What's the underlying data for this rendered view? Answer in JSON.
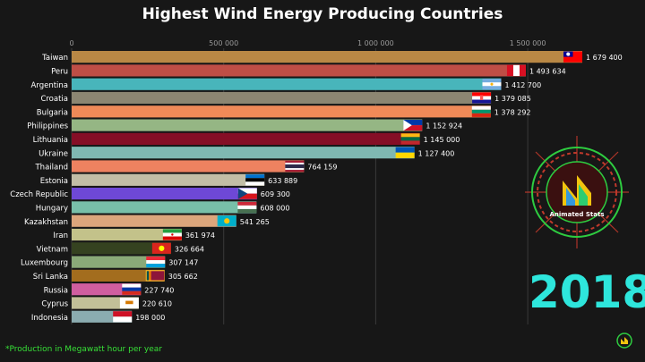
{
  "title": "Highest Wind Energy Producing Countries",
  "year": "2018",
  "footnote": "*Production in Megawatt hour per year",
  "logo_text": "Animated Stats",
  "chart_data": {
    "type": "bar",
    "orientation": "horizontal",
    "title": "Highest Wind Energy Producing Countries",
    "xlim": [
      0,
      1700000
    ],
    "ticks": [
      0,
      500000,
      1000000,
      1500000
    ],
    "tick_labels": [
      "0",
      "500 000",
      "1 000 000",
      "1 500 000"
    ],
    "grid": true,
    "categories": [
      "Taiwan",
      "Peru",
      "Argentina",
      "Croatia",
      "Bulgaria",
      "Philippines",
      "Lithuania",
      "Ukraine",
      "Thailand",
      "Estonia",
      "Czech Republic",
      "Hungary",
      "Kazakhstan",
      "Iran",
      "Vietnam",
      "Luxembourg",
      "Sri Lanka",
      "Russia",
      "Cyprus",
      "Indonesia"
    ],
    "values": [
      1679400,
      1493634,
      1412700,
      1379085,
      1378292,
      1152924,
      1145000,
      1127400,
      764159,
      633889,
      609300,
      608000,
      541265,
      361974,
      326664,
      307147,
      305662,
      227740,
      220610,
      198000
    ],
    "value_labels": [
      "1 679 400",
      "1 493 634",
      "1 412 700",
      "1 379 085",
      "1 378 292",
      "1 152 924",
      "1 145 000",
      "1 127 400",
      "764 159",
      "633 889",
      "609 300",
      "608 000",
      "541 265",
      "361 974",
      "326 664",
      "307 147",
      "305 662",
      "227 740",
      "220 610",
      "198 000"
    ],
    "colors": [
      "#b98845",
      "#bf4e46",
      "#48b5bb",
      "#8c8672",
      "#f08a58",
      "#95b684",
      "#850e26",
      "#7fb8b2",
      "#ee8260",
      "#c2bea6",
      "#6e48d6",
      "#78bfa9",
      "#dca67c",
      "#c3c28a",
      "#354220",
      "#8aaa78",
      "#a36d1e",
      "#d05ea0",
      "#c2c098",
      "#8bacb0"
    ],
    "flags": [
      "taiwan-flag",
      "peru-flag",
      "argentina-flag",
      "croatia-flag",
      "bulgaria-flag",
      "philippines-flag",
      "lithuania-flag",
      "ukraine-flag",
      "thailand-flag",
      "estonia-flag",
      "czech-republic-flag",
      "hungary-flag",
      "kazakhstan-flag",
      "iran-flag",
      "vietnam-flag",
      "luxembourg-flag",
      "sri-lanka-flag",
      "russia-flag",
      "cyprus-flag",
      "indonesia-flag"
    ]
  }
}
